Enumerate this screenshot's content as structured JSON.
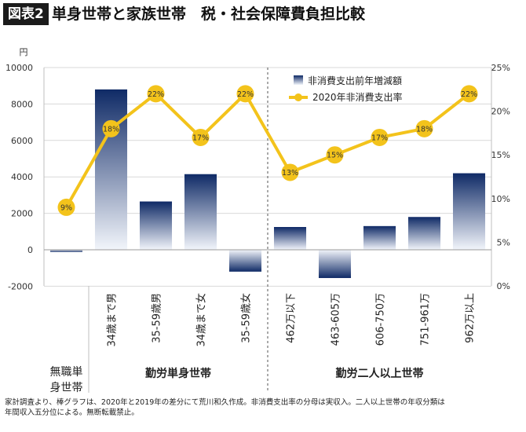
{
  "figure": {
    "badge": "図表2",
    "title": "単身世帯と家族世帯　税・社会保障費負担比較"
  },
  "chart_data": {
    "type": "bar",
    "categories": [
      "無職単身世帯",
      "34歳まで男",
      "35-59歳男",
      "34歳まで女",
      "35-59歳女",
      "462万以下",
      "463-605万",
      "606-750万",
      "751-961万",
      "962万以上"
    ],
    "groups": [
      {
        "label": "勤労単身世帯",
        "from": 1,
        "to": 4
      },
      {
        "label": "勤労二人以上世帯",
        "from": 5,
        "to": 9
      }
    ],
    "standalone_label": {
      "index": 0,
      "lines": [
        "無職単",
        "身世帯"
      ]
    },
    "y_left": {
      "unit": "円",
      "min": -2000,
      "max": 10000,
      "ticks": [
        -2000,
        0,
        2000,
        4000,
        6000,
        8000,
        10000
      ]
    },
    "y_right": {
      "min": 0,
      "max": 25,
      "ticks": [
        "0%",
        "5%",
        "10%",
        "15%",
        "20%",
        "25%"
      ]
    },
    "series": [
      {
        "name": "非消費支出前年増減額",
        "kind": "bar",
        "axis": "left",
        "values": [
          -120,
          8800,
          2650,
          4150,
          -1200,
          1250,
          -1550,
          1300,
          1800,
          4200
        ]
      },
      {
        "name": "2020年非消費支出率",
        "kind": "line",
        "axis": "right",
        "values": [
          9,
          18,
          22,
          17,
          22,
          13,
          15,
          17,
          18,
          22
        ],
        "labels": [
          "9%",
          "18%",
          "22%",
          "17%",
          "22%",
          "13%",
          "15%",
          "17%",
          "18%",
          "22%"
        ]
      }
    ],
    "colors": {
      "bar_top": "#0f2a66",
      "bar_bottom": "#f2f5fb",
      "line": "#f3c31b",
      "grid": "#d9d9d9"
    }
  },
  "footnote": {
    "line1": "家計調査より、棒グラフは、2020年と2019年の差分にて荒川和久作成。非消費支出率の分母は実収入。二人以上世帯の年収分類は",
    "line2": "年間収入五分位による。無断転載禁止。"
  }
}
